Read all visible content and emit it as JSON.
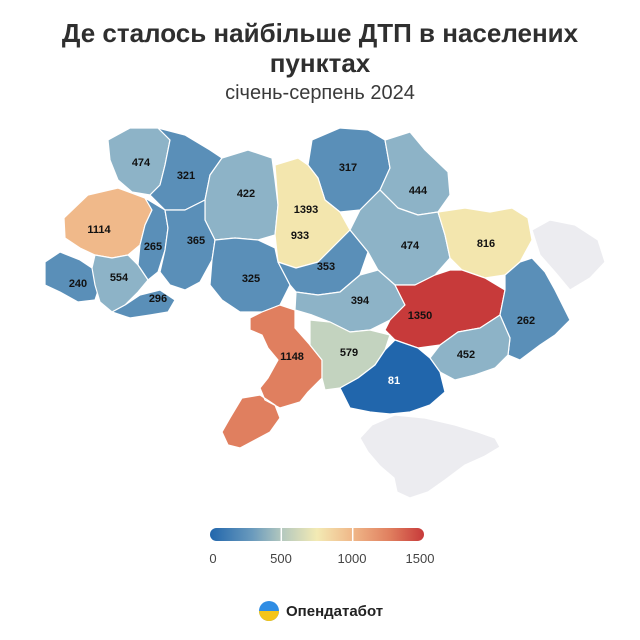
{
  "title": "Де сталось найбільше ДТП в населених пунктах",
  "subtitle": "січень-серпень 2024",
  "colors": {
    "scale": [
      "#2166ac",
      "#5a8fb8",
      "#8db3c7",
      "#c3d3bf",
      "#f3e6ae",
      "#f0b98a",
      "#e07f5f",
      "#c73a3a"
    ],
    "no_data": "#ececf0"
  },
  "map_data": {
    "type": "choropleth",
    "scale_min": 0,
    "scale_max": 1500,
    "regions": [
      {
        "value": 474
      },
      {
        "value": 321
      },
      {
        "value": 422
      },
      {
        "value": 317
      },
      {
        "value": 444
      },
      {
        "value": 1393
      },
      {
        "value": 933
      },
      {
        "value": 1114
      },
      {
        "value": 265
      },
      {
        "value": 365
      },
      {
        "value": 474
      },
      {
        "value": 816
      },
      {
        "value": 240
      },
      {
        "value": 554
      },
      {
        "value": 296
      },
      {
        "value": 325
      },
      {
        "value": 353
      },
      {
        "value": 394
      },
      {
        "value": 1350
      },
      {
        "value": 262
      },
      {
        "value": 1148
      },
      {
        "value": 579
      },
      {
        "value": 452
      },
      {
        "value": 81
      }
    ]
  },
  "legend": {
    "ticks": [
      "0",
      "500",
      "1000",
      "1500"
    ]
  },
  "brand": {
    "name": "Опендатабот"
  }
}
